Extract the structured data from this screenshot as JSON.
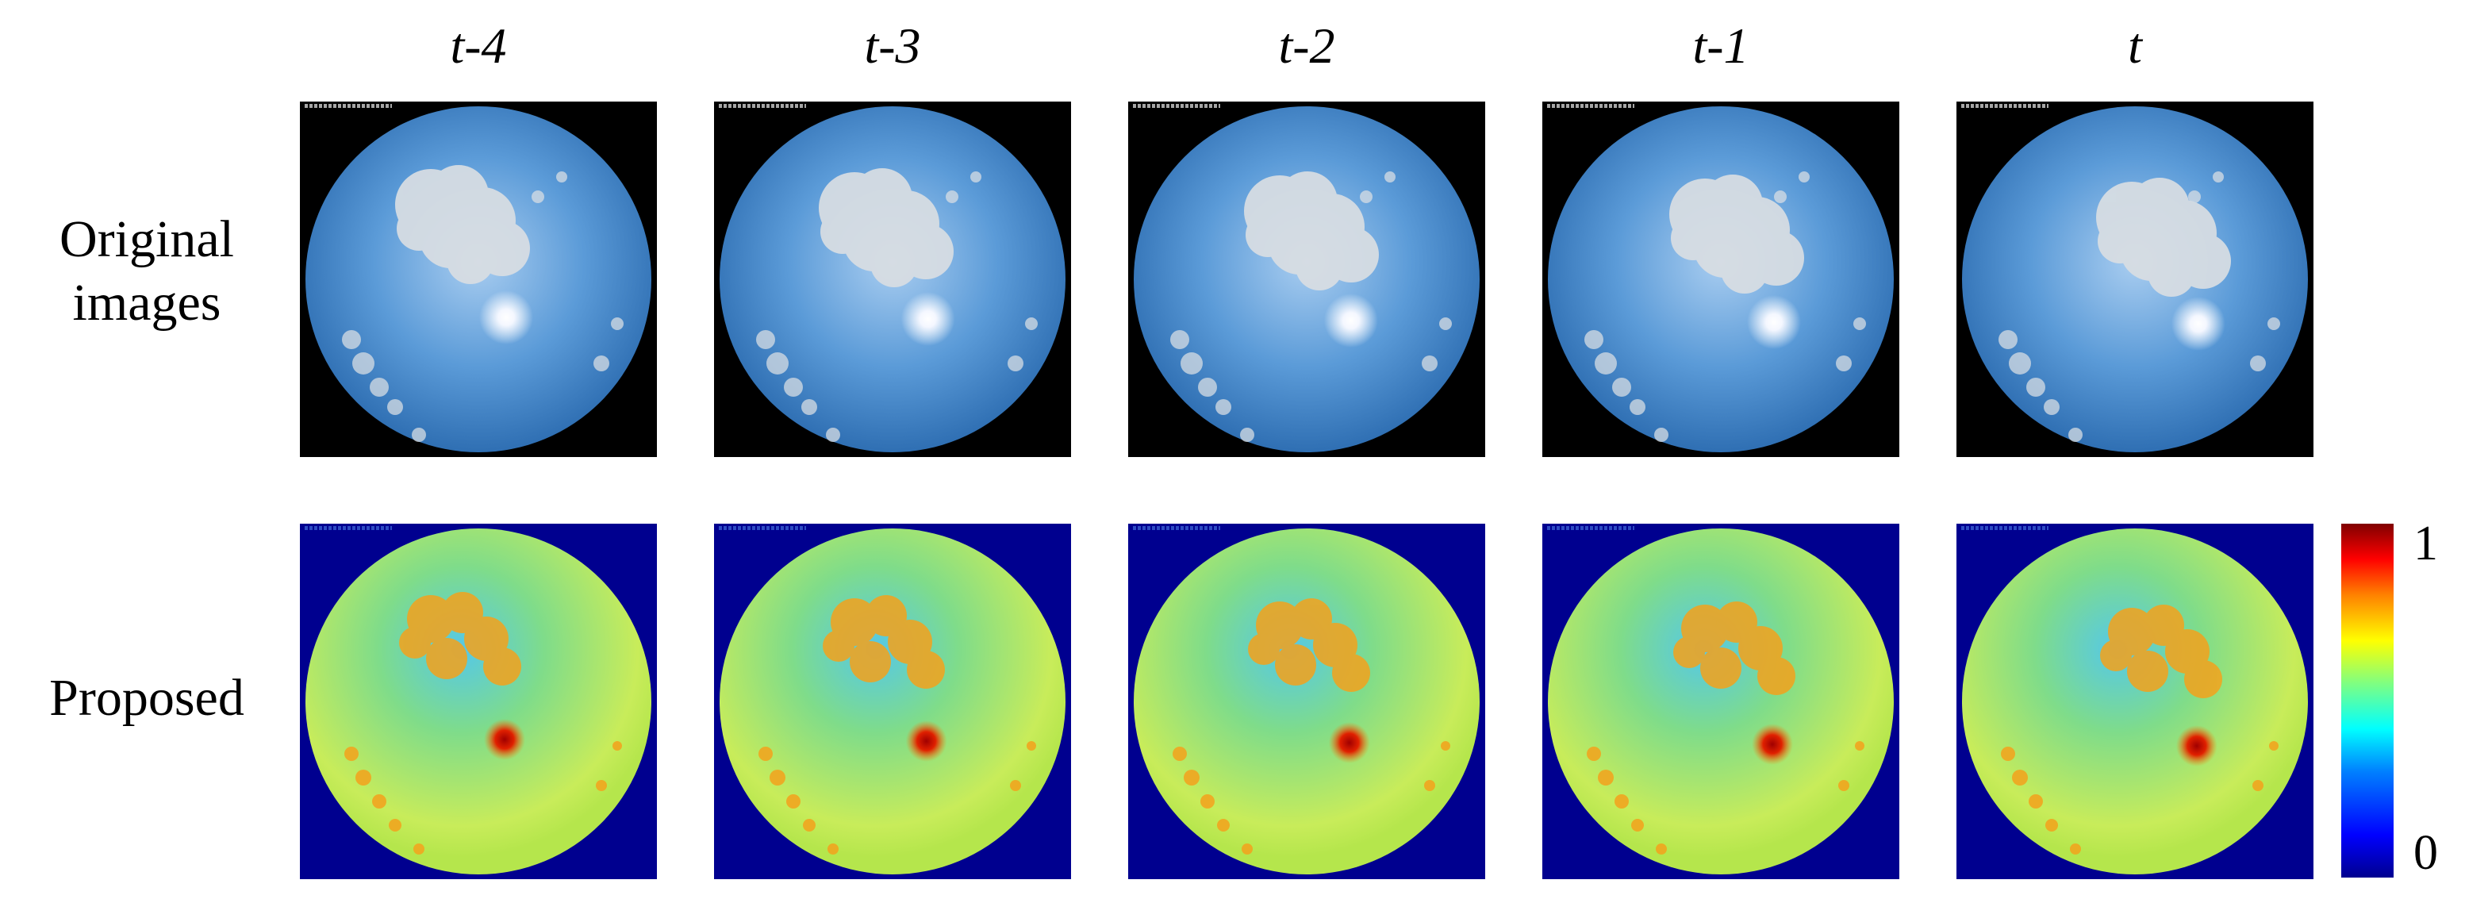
{
  "columns": [
    "t-4",
    "t-3",
    "t-2",
    "t-1",
    "t"
  ],
  "rows": {
    "original": "Original images",
    "original_line1": "Original",
    "original_line2": "images",
    "proposed": "Proposed"
  },
  "colorbar": {
    "max_label": "1",
    "min_label": "0",
    "colormap": "jet",
    "colors": [
      "#00008f",
      "#0000ff",
      "#0080ff",
      "#00ffff",
      "#80ff80",
      "#ffff00",
      "#ff8000",
      "#ff0000",
      "#800000"
    ]
  },
  "colors": {
    "sky": "#5b9bd8",
    "cloud": "#d9dee3",
    "map_background": "#00008f",
    "map_field": "#7fdc8a",
    "map_cloud": "#f4a21c",
    "map_sun_core": "#a00000"
  }
}
